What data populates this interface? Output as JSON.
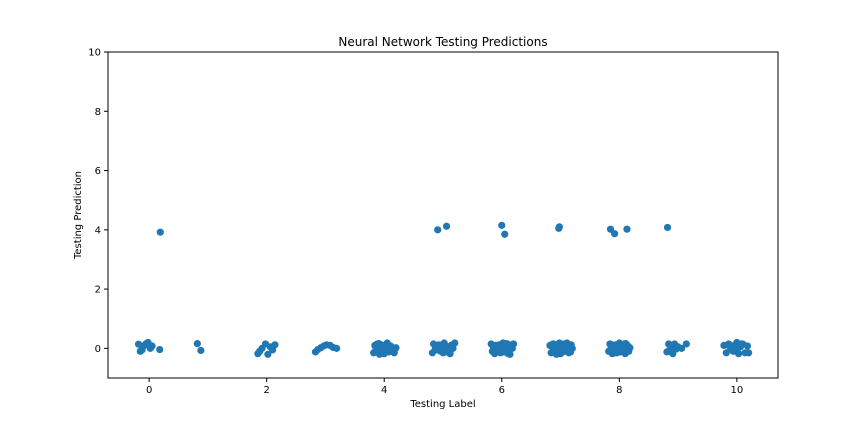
{
  "chart_data": {
    "type": "scatter",
    "title": "Neural Network Testing Predictions",
    "xlabel": "Testing Label",
    "ylabel": "Testing Prediction",
    "xlim": [
      -0.7,
      10.7
    ],
    "ylim": [
      -1,
      10
    ],
    "xticks": [
      0,
      2,
      4,
      6,
      8,
      10
    ],
    "yticks": [
      0,
      2,
      4,
      6,
      8,
      10
    ],
    "grid": false,
    "point_color": "#1f77b4",
    "x": [
      -0.18,
      -0.15,
      -0.12,
      -0.08,
      -0.05,
      -0.02,
      0.02,
      0.05,
      0.18,
      0.19,
      0.82,
      0.88,
      1.85,
      1.88,
      1.92,
      1.98,
      2.02,
      2.06,
      2.1,
      2.14,
      2.83,
      2.87,
      2.92,
      2.97,
      3.02,
      3.08,
      3.13,
      3.19,
      3.82,
      3.84,
      3.86,
      3.88,
      3.9,
      3.92,
      3.95,
      3.98,
      4.02,
      4.05,
      4.08,
      4.11,
      4.14,
      4.17,
      4.2,
      3.91,
      4.0,
      4.09,
      3.96,
      4.04,
      4.82,
      4.84,
      4.87,
      4.9,
      4.93,
      4.96,
      4.99,
      5.02,
      5.05,
      5.08,
      5.11,
      5.14,
      5.17,
      5.2,
      4.91,
      5.06,
      4.88,
      5.0,
      5.12,
      4.96,
      5.16,
      5.82,
      5.84,
      5.86,
      5.88,
      5.9,
      5.92,
      5.94,
      5.96,
      5.98,
      6.0,
      6.02,
      6.04,
      6.06,
      6.08,
      6.1,
      6.12,
      6.14,
      6.16,
      6.18,
      6.2,
      5.87,
      5.93,
      5.99,
      6.05,
      6.11,
      6.17,
      5.85,
      5.95,
      6.07,
      6.15,
      6.0,
      6.05,
      6.82,
      6.84,
      6.86,
      6.88,
      6.9,
      6.92,
      6.94,
      6.96,
      6.98,
      7.0,
      7.02,
      7.04,
      7.06,
      7.08,
      7.1,
      7.12,
      7.14,
      7.16,
      7.18,
      7.2,
      6.87,
      6.93,
      6.99,
      7.05,
      7.11,
      7.17,
      6.97,
      6.98,
      7.82,
      7.84,
      7.86,
      7.88,
      7.9,
      7.92,
      7.94,
      7.96,
      7.98,
      8.0,
      8.02,
      8.04,
      8.06,
      8.08,
      8.1,
      8.12,
      8.14,
      8.16,
      8.18,
      7.87,
      7.93,
      7.99,
      8.05,
      8.11,
      7.85,
      7.92,
      8.13,
      8.81,
      8.84,
      8.86,
      8.88,
      8.91,
      8.94,
      8.97,
      9.0,
      9.06,
      9.14,
      8.82,
      9.78,
      9.82,
      9.86,
      9.9,
      9.94,
      9.97,
      10.0,
      10.03,
      10.06,
      10.1,
      10.14,
      10.18,
      10.2,
      9.88,
      9.98,
      10.08
    ],
    "y": [
      0.14,
      -0.1,
      -0.05,
      0.1,
      0.16,
      0.2,
      0.0,
      0.08,
      -0.04,
      3.92,
      0.16,
      -0.07,
      -0.18,
      -0.1,
      0.0,
      0.15,
      -0.2,
      0.05,
      -0.05,
      0.12,
      -0.12,
      -0.04,
      0.02,
      0.08,
      0.12,
      0.1,
      0.03,
      0.0,
      -0.15,
      0.1,
      -0.05,
      0.15,
      0.0,
      -0.2,
      0.12,
      -0.1,
      0.05,
      0.18,
      -0.12,
      0.08,
      -0.05,
      -0.15,
      0.02,
      0.16,
      -0.18,
      0.0,
      0.06,
      -0.08,
      -0.15,
      0.15,
      0.0,
      -0.05,
      0.12,
      -0.1,
      0.08,
      0.18,
      -0.12,
      0.05,
      -0.05,
      0.1,
      0.0,
      0.18,
      4.0,
      4.12,
      0.05,
      -0.15,
      -0.18,
      0.1,
      0.12,
      0.15,
      -0.1,
      0.05,
      -0.18,
      0.1,
      0.0,
      -0.05,
      0.12,
      -0.15,
      0.08,
      0.18,
      -0.12,
      0.02,
      -0.08,
      0.15,
      0.05,
      -0.2,
      0.1,
      0.0,
      0.15,
      -0.15,
      0.1,
      -0.05,
      0.12,
      -0.18,
      0.05,
      0.08,
      -0.1,
      0.16,
      -0.02,
      4.15,
      3.85,
      0.1,
      -0.15,
      0.05,
      0.15,
      -0.05,
      0.12,
      -0.1,
      0.0,
      0.18,
      -0.18,
      0.08,
      -0.12,
      0.15,
      0.02,
      -0.08,
      0.1,
      -0.15,
      0.05,
      0.12,
      0.0,
      0.15,
      -0.2,
      0.08,
      -0.05,
      0.18,
      -0.12,
      4.05,
      4.1,
      -0.1,
      0.15,
      0.0,
      -0.18,
      0.1,
      -0.05,
      0.12,
      -0.15,
      0.05,
      0.18,
      -0.12,
      0.08,
      -0.02,
      0.15,
      -0.18,
      0.05,
      0.1,
      -0.1,
      0.02,
      0.12,
      -0.15,
      0.08,
      -0.08,
      0.16,
      4.02,
      3.87,
      4.02,
      -0.12,
      0.15,
      -0.05,
      0.05,
      -0.18,
      0.15,
      -0.02,
      0.05,
      0.0,
      0.15,
      4.08,
      0.1,
      -0.15,
      0.15,
      0.0,
      -0.1,
      0.12,
      0.2,
      -0.18,
      0.05,
      0.15,
      -0.15,
      0.08,
      -0.15,
      0.05,
      -0.05,
      0.15
    ]
  }
}
